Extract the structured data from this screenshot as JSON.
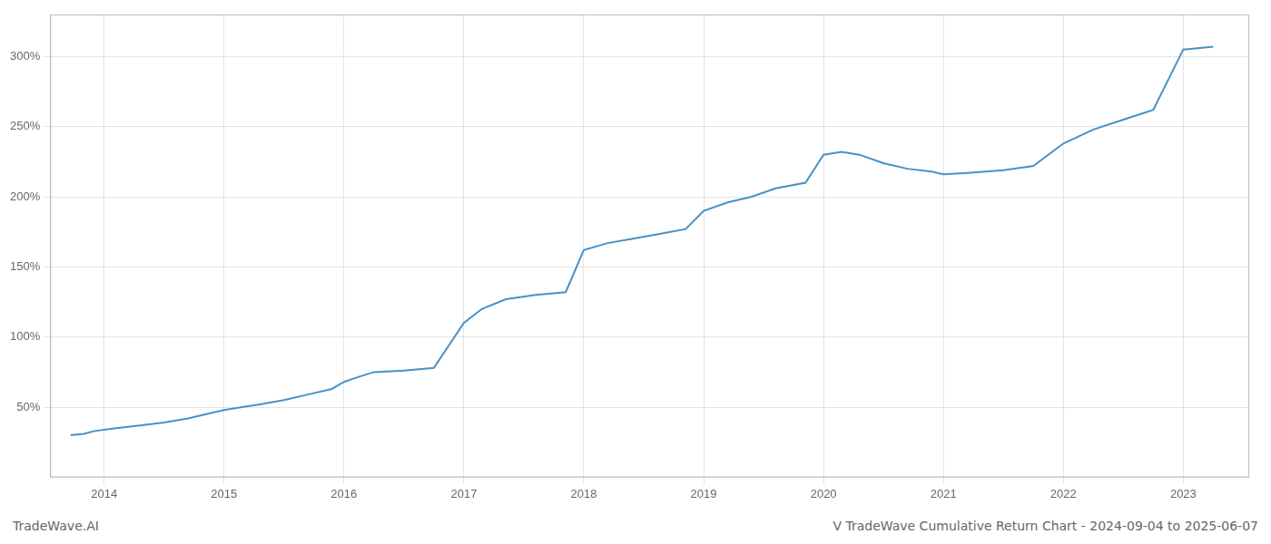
{
  "chart_data": {
    "type": "line",
    "annotations": [
      "TradeWave.AI",
      "V TradeWave Cumulative Return Chart - 2024-09-04 to 2025-06-07"
    ],
    "x": [
      2013.72,
      2013.83,
      2013.92,
      2014.1,
      2014.3,
      2014.5,
      2014.7,
      2014.9,
      2015.0,
      2015.15,
      2015.3,
      2015.5,
      2015.7,
      2015.9,
      2016.0,
      2016.1,
      2016.25,
      2016.5,
      2016.75,
      2017.0,
      2017.15,
      2017.35,
      2017.6,
      2017.85,
      2018.0,
      2018.2,
      2018.4,
      2018.6,
      2018.85,
      2019.0,
      2019.2,
      2019.4,
      2019.6,
      2019.85,
      2020.0,
      2020.15,
      2020.3,
      2020.5,
      2020.7,
      2020.9,
      2021.0,
      2021.2,
      2021.5,
      2021.75,
      2022.0,
      2022.25,
      2022.5,
      2022.75,
      2023.0,
      2023.25
    ],
    "values": [
      30,
      31,
      33,
      35,
      37,
      39,
      42,
      46,
      48,
      50,
      52,
      55,
      59,
      63,
      68,
      71,
      75,
      76,
      78,
      110,
      120,
      127,
      130,
      132,
      162,
      167,
      170,
      173,
      177,
      190,
      196,
      200,
      206,
      210,
      230,
      232,
      230,
      224,
      220,
      218,
      216,
      217,
      219,
      222,
      238,
      248,
      255,
      262,
      305,
      307
    ],
    "color": "#4a90c4",
    "xlim": [
      2013.55,
      2023.55
    ],
    "xticks": [
      2014,
      2015,
      2016,
      2017,
      2018,
      2019,
      2020,
      2021,
      2022,
      2023
    ],
    "ylim": [
      0,
      330
    ],
    "yticks": [
      {
        "value": 50,
        "label": "50%"
      },
      {
        "value": 100,
        "label": "100%"
      },
      {
        "value": 150,
        "label": "150%"
      },
      {
        "value": 200,
        "label": "200%"
      },
      {
        "value": 250,
        "label": "250%"
      },
      {
        "value": 300,
        "label": "300%"
      }
    ],
    "grid": true
  }
}
